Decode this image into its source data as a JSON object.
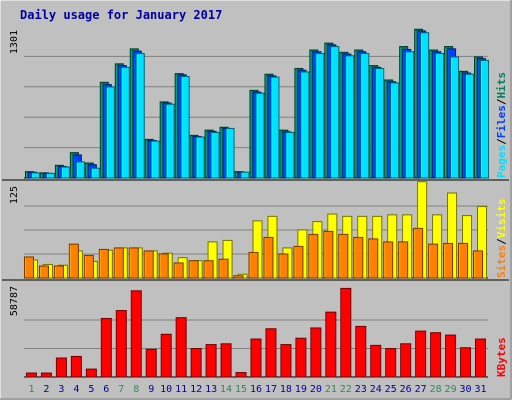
{
  "colors": {
    "background": "#c0c0c0",
    "title": "#0000a0",
    "axis_text": "#000000",
    "weekday": "#0000a0",
    "weekend": "#2e8b57",
    "hits": "#00805c",
    "files": "#0040ff",
    "pages": "#00e0ff",
    "visits": "#ffff00",
    "sites": "#ff8000",
    "kbytes": "#ff0000",
    "separator": "#000000"
  },
  "chart_data": {
    "title": "Daily usage for January 2017",
    "type": "bar",
    "days": [
      "1",
      "2",
      "3",
      "4",
      "5",
      "6",
      "7",
      "8",
      "9",
      "10",
      "11",
      "12",
      "13",
      "14",
      "15",
      "16",
      "17",
      "18",
      "19",
      "20",
      "21",
      "22",
      "23",
      "24",
      "25",
      "26",
      "27",
      "28",
      "29",
      "30",
      "31"
    ],
    "weekend_days": [
      "1",
      "7",
      "8",
      "14",
      "15",
      "21",
      "22",
      "28",
      "29"
    ],
    "panels": [
      {
        "id": "hits",
        "max_label": "1301",
        "ymax": 1301,
        "legend": [
          {
            "text": "Pages",
            "color_key": "pages"
          },
          {
            "text": "/",
            "color_key": "axis_text"
          },
          {
            "text": "Files",
            "color_key": "files"
          },
          {
            "text": "/",
            "color_key": "axis_text"
          },
          {
            "text": "Hits",
            "color_key": "hits"
          }
        ],
        "series": [
          {
            "name": "Hits",
            "color_key": "hits",
            "values": [
              55,
              45,
              110,
              220,
              130,
              830,
              990,
              1120,
              335,
              660,
              905,
              370,
              415,
              440,
              55,
              760,
              900,
              415,
              950,
              1110,
              1170,
              1090,
              1110,
              975,
              850,
              1140,
              1290,
              1110,
              1140,
              925,
              1050
            ]
          },
          {
            "name": "Files",
            "color_key": "files",
            "values": [
              50,
              40,
              100,
              200,
              115,
              810,
              975,
              1100,
              325,
              650,
              895,
              360,
              405,
              430,
              50,
              745,
              885,
              400,
              935,
              1095,
              1155,
              1075,
              1095,
              960,
              835,
              1115,
              1275,
              1095,
              1120,
              910,
              1035
            ]
          },
          {
            "name": "Pages",
            "color_key": "pages",
            "values": [
              45,
              40,
              95,
              140,
              85,
              790,
              960,
              1080,
              320,
              640,
              880,
              355,
              395,
              430,
              50,
              735,
              875,
              395,
              920,
              1080,
              1140,
              1060,
              1080,
              950,
              825,
              1095,
              1260,
              1080,
              1050,
              900,
              1020
            ]
          }
        ]
      },
      {
        "id": "visits",
        "max_label": "125",
        "ymax": 125,
        "legend": [
          {
            "text": "Sites",
            "color_key": "sites"
          },
          {
            "text": "/",
            "color_key": "axis_text"
          },
          {
            "text": "Visits",
            "color_key": "visits"
          }
        ],
        "series": [
          {
            "name": "Visits",
            "color_key": "visits",
            "values": [
              24,
              18,
              17,
              36,
              22,
              37,
              40,
              40,
              36,
              33,
              27,
              23,
              48,
              50,
              5,
              76,
              82,
              40,
              64,
              75,
              85,
              82,
              82,
              82,
              84,
              84,
              128,
              84,
              113,
              83,
              95
            ]
          },
          {
            "name": "Sites",
            "color_key": "sites",
            "values": [
              28,
              16,
              16,
              45,
              30,
              38,
              40,
              40,
              36,
              32,
              20,
              23,
              23,
              25,
              3,
              34,
              54,
              32,
              42,
              58,
              62,
              58,
              54,
              52,
              48,
              48,
              66,
              45,
              46,
              46,
              36
            ]
          }
        ]
      },
      {
        "id": "kbytes",
        "max_label": "58787",
        "ymax": 58787,
        "legend": [
          {
            "text": "KBytes",
            "color_key": "kbytes"
          }
        ],
        "series": [
          {
            "name": "KBytes",
            "color_key": "kbytes",
            "values": [
              2500,
              2500,
              12000,
              13000,
              5000,
              37000,
              42000,
              54500,
              17500,
              27000,
              37500,
              18000,
              20500,
              21000,
              2800,
              24000,
              30500,
              20500,
              24500,
              31000,
              41000,
              56000,
              32000,
              20000,
              18000,
              21000,
              29000,
              28000,
              26500,
              18500,
              24000
            ]
          }
        ]
      }
    ]
  }
}
